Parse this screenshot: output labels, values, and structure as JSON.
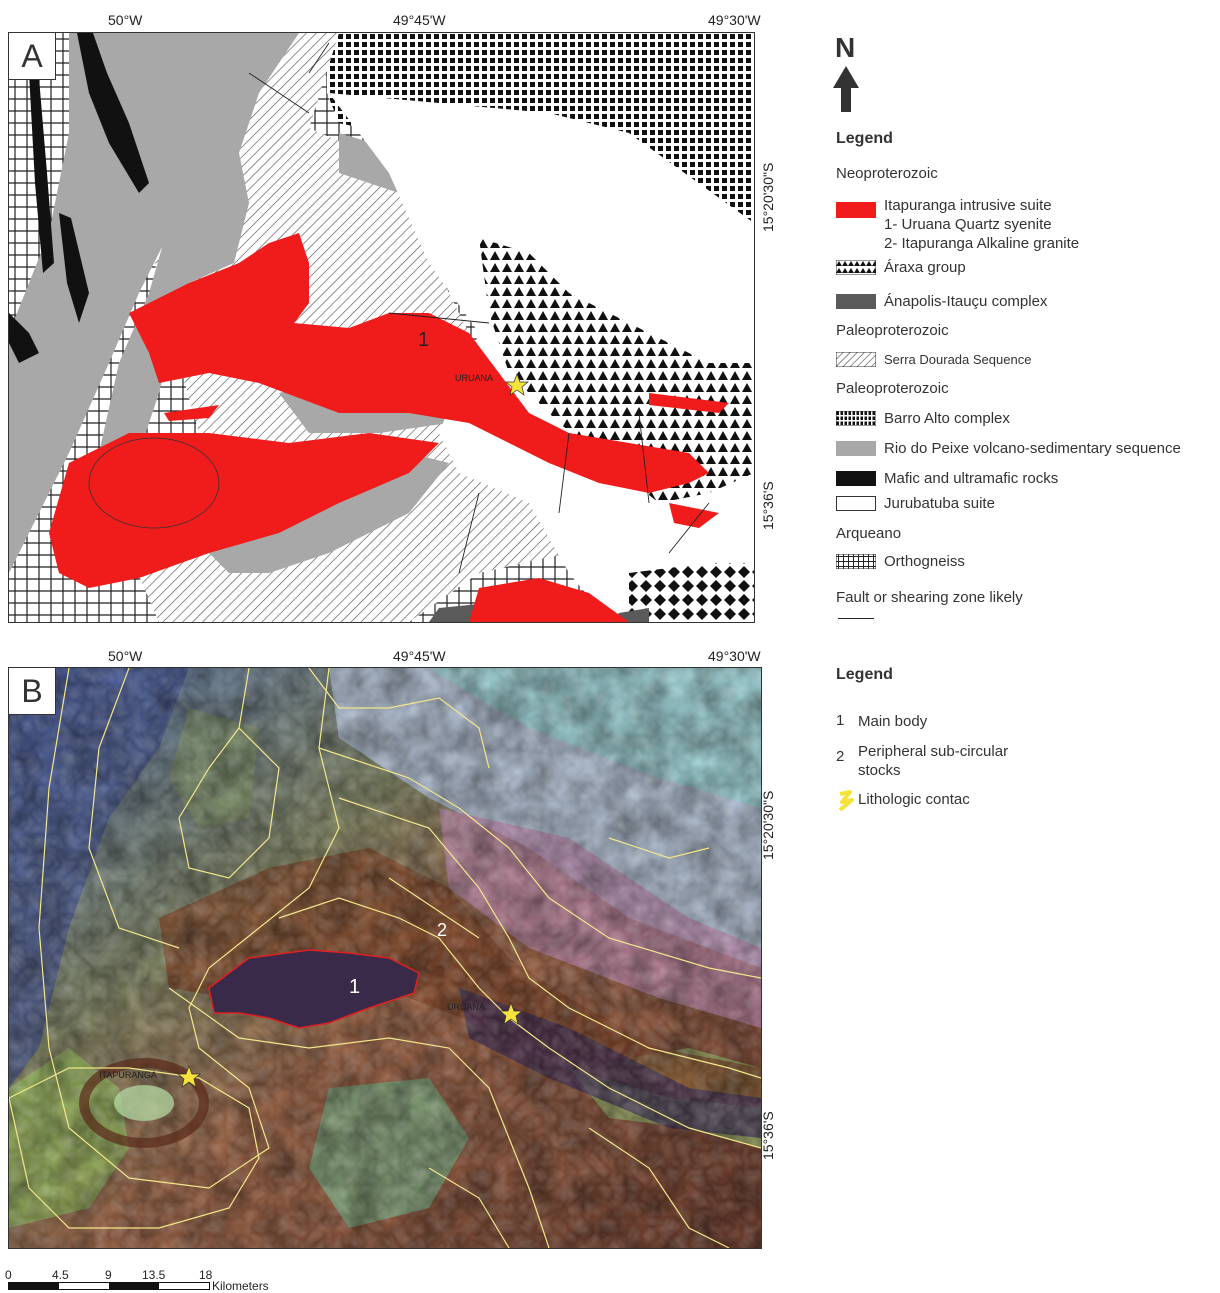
{
  "panel_a": {
    "label": "A",
    "top_coords": [
      "50°W",
      "49°45'W",
      "49°30'W"
    ],
    "side_coords": [
      "15°20'30\"S",
      "15°36'S"
    ],
    "map_label_main_body": "1",
    "town": "URUANA"
  },
  "panel_b": {
    "label": "B",
    "top_coords": [
      "50°W",
      "49°45'W",
      "49°30'W"
    ],
    "side_coords": [
      "15°20'30\"S",
      "15°36'S"
    ],
    "map_label_main_body": "1",
    "map_label_stocks": "2",
    "towns": [
      "URUANA",
      "ITAPURANGA"
    ]
  },
  "north_arrow": {
    "letter": "N"
  },
  "legend_a": {
    "title": "Legend",
    "groups": [
      {
        "heading": "Neoproterozoic",
        "items": [
          {
            "label": [
              "Itapuranga intrusive suite",
              "1- Uruana Quartz syenite",
              "2- Itapuranga Alkaline granite"
            ],
            "pattern": "red"
          },
          {
            "label": [
              "Áraxa group"
            ],
            "pattern": "triangles"
          },
          {
            "label": [
              "Ánapolis-Itauçu complex"
            ],
            "pattern": "darkgray"
          }
        ]
      },
      {
        "heading": "Paleoproterozoic",
        "items": [
          {
            "label": [
              "Serra Dourada Sequence"
            ],
            "pattern": "hatch"
          }
        ]
      },
      {
        "heading": "Paleoproterozoic",
        "items": [
          {
            "label": [
              "Barro Alto complex"
            ],
            "pattern": "squares"
          },
          {
            "label": [
              "Rio do Peixe volcano-sedimentary sequence"
            ],
            "pattern": "lightgray"
          },
          {
            "label": [
              "Mafic and ultramafic rocks"
            ],
            "pattern": "black"
          },
          {
            "label": [
              "Jurubatuba suite"
            ],
            "pattern": "white"
          }
        ]
      },
      {
        "heading": "Arqueano",
        "items": [
          {
            "label": [
              "Orthogneiss"
            ],
            "pattern": "grid"
          }
        ]
      }
    ],
    "fault_label": "Fault or shearing zone likely"
  },
  "legend_b": {
    "title": "Legend",
    "items": [
      {
        "num": "1",
        "label": [
          "Main body"
        ]
      },
      {
        "num": "2",
        "label": [
          "Peripheral sub-circular",
          "stocks"
        ]
      },
      {
        "num": "",
        "label": [
          "Lithologic contac"
        ]
      }
    ]
  },
  "scale_bar": {
    "ticks": [
      "0",
      "4.5",
      "9",
      "13.5",
      "18"
    ],
    "unit": "Kilometers"
  },
  "colors": {
    "intrusive": "#f01c1c",
    "rio_do_peixe": "#a8a8a8",
    "anapolis": "#5a5a5a",
    "mafic": "#111111",
    "contact_line": "#f2e68c"
  }
}
